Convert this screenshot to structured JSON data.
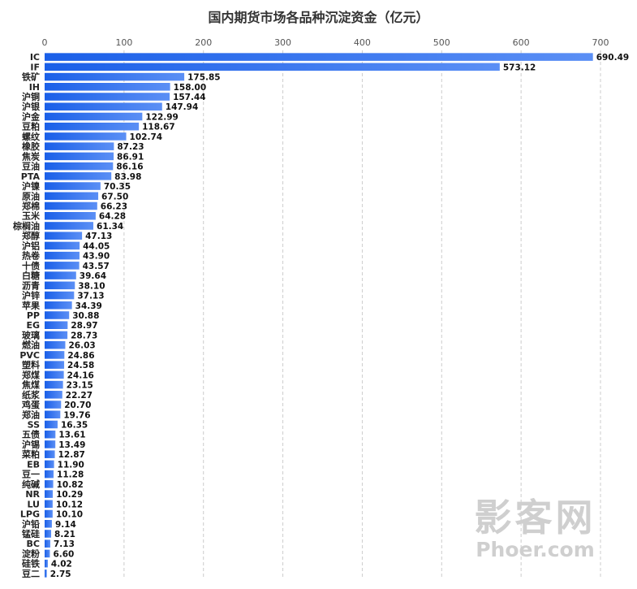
{
  "chart_data": {
    "type": "bar",
    "orientation": "horizontal",
    "title": "国内期货市场各品种沉淀资金（亿元）",
    "xlabel": "",
    "ylabel": "",
    "xlim": [
      0,
      700
    ],
    "xticks": [
      0,
      100,
      200,
      300,
      400,
      500,
      600,
      700
    ],
    "grid": true,
    "bar_color": "#1a5fe8",
    "bar_color_light": "#5b8ff5",
    "categories": [
      "IC",
      "IF",
      "铁矿",
      "IH",
      "沪铜",
      "沪银",
      "沪金",
      "豆粕",
      "螺纹",
      "橡胶",
      "焦炭",
      "豆油",
      "PTA",
      "沪镍",
      "原油",
      "郑棉",
      "玉米",
      "棕榈油",
      "郑醇",
      "沪铝",
      "热卷",
      "十债",
      "白糖",
      "沥青",
      "沪锌",
      "苹果",
      "PP",
      "EG",
      "玻璃",
      "燃油",
      "PVC",
      "塑料",
      "郑煤",
      "焦煤",
      "纸浆",
      "鸡蛋",
      "郑油",
      "SS",
      "五债",
      "沪锡",
      "菜粕",
      "EB",
      "豆一",
      "纯碱",
      "NR",
      "LU",
      "LPG",
      "沪铅",
      "锰硅",
      "BC",
      "淀粉",
      "硅铁",
      "豆二"
    ],
    "values": [
      690.49,
      573.12,
      175.85,
      158.0,
      157.44,
      147.94,
      122.99,
      118.67,
      102.74,
      87.23,
      86.91,
      86.16,
      83.98,
      70.35,
      67.5,
      66.23,
      64.28,
      61.34,
      47.13,
      44.05,
      43.9,
      43.57,
      39.64,
      38.1,
      37.13,
      34.39,
      30.88,
      28.97,
      28.73,
      26.03,
      24.86,
      24.58,
      24.16,
      23.15,
      22.27,
      20.7,
      19.76,
      16.35,
      13.61,
      13.49,
      12.87,
      11.9,
      11.28,
      10.82,
      10.29,
      10.12,
      10.1,
      9.14,
      8.21,
      7.13,
      6.6,
      4.02,
      2.75
    ],
    "value_labels": [
      "690.49",
      "573.12",
      "175.85",
      "158.00",
      "157.44",
      "147.94",
      "122.99",
      "118.67",
      "102.74",
      "87.23",
      "86.91",
      "86.16",
      "83.98",
      "70.35",
      "67.50",
      "66.23",
      "64.28",
      "61.34",
      "47.13",
      "44.05",
      "43.90",
      "43.57",
      "39.64",
      "38.10",
      "37.13",
      "34.39",
      "30.88",
      "28.97",
      "28.73",
      "26.03",
      "24.86",
      "24.58",
      "24.16",
      "23.15",
      "22.27",
      "20.70",
      "19.76",
      "16.35",
      "13.61",
      "13.49",
      "12.87",
      "11.90",
      "11.28",
      "10.82",
      "10.29",
      "10.12",
      "10.10",
      "9.14",
      "8.21",
      "7.13",
      "6.60",
      "4.02",
      "2.75"
    ]
  },
  "watermark": {
    "line1": "影客网",
    "line2": "Phoer.com"
  }
}
